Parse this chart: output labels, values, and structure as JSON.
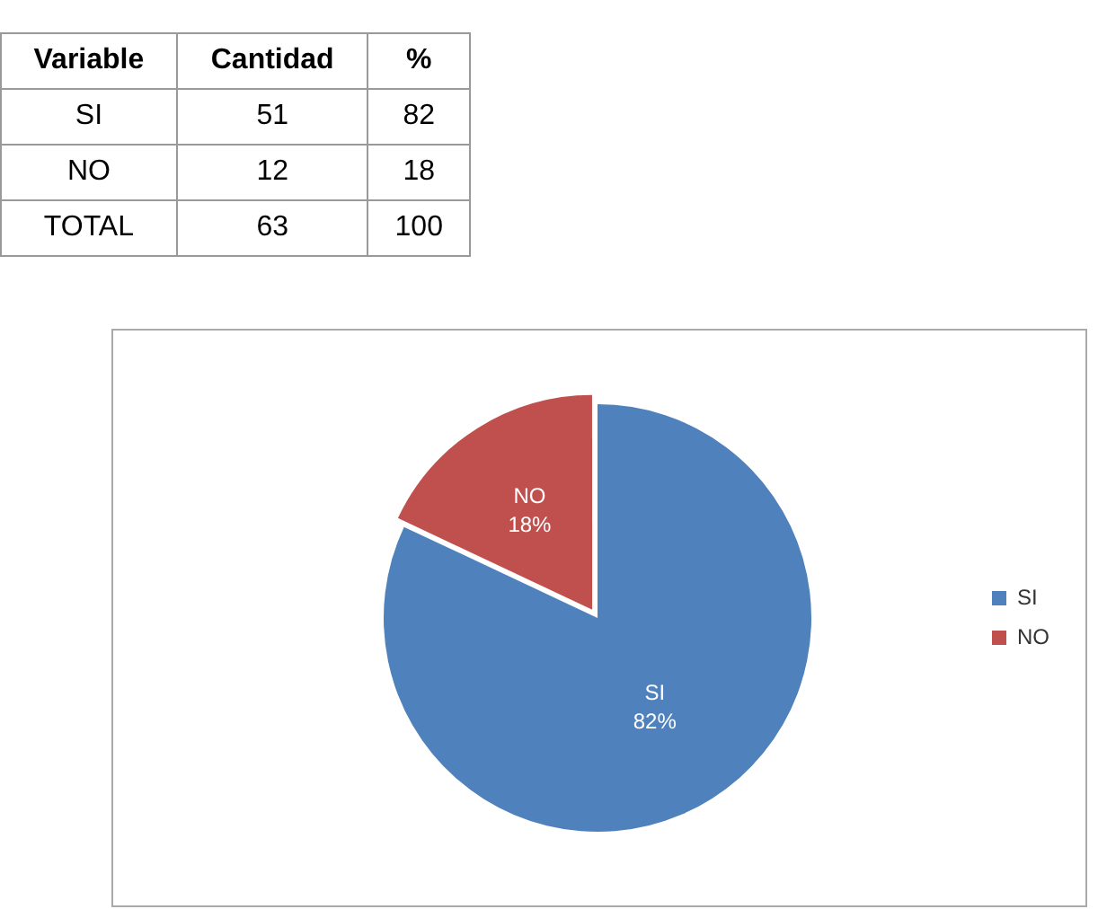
{
  "chart_data": [
    {
      "type": "other",
      "xlabel": "Variable",
      "categories": [
        "SI",
        "NO",
        "TOTAL"
      ],
      "data_labels": true,
      "series": [
        {
          "name": "Cantidad",
          "values": [
            51,
            12,
            63
          ]
        },
        {
          "name": "%",
          "values": [
            82,
            18,
            100
          ]
        }
      ]
    },
    {
      "type": "pie",
      "categories": [
        "SI",
        "NO"
      ],
      "values": [
        82,
        18
      ],
      "colors": [
        "#4f81bd",
        "#c0504d"
      ],
      "value_labels": [
        "82%",
        "18%"
      ],
      "legend": "right"
    }
  ]
}
